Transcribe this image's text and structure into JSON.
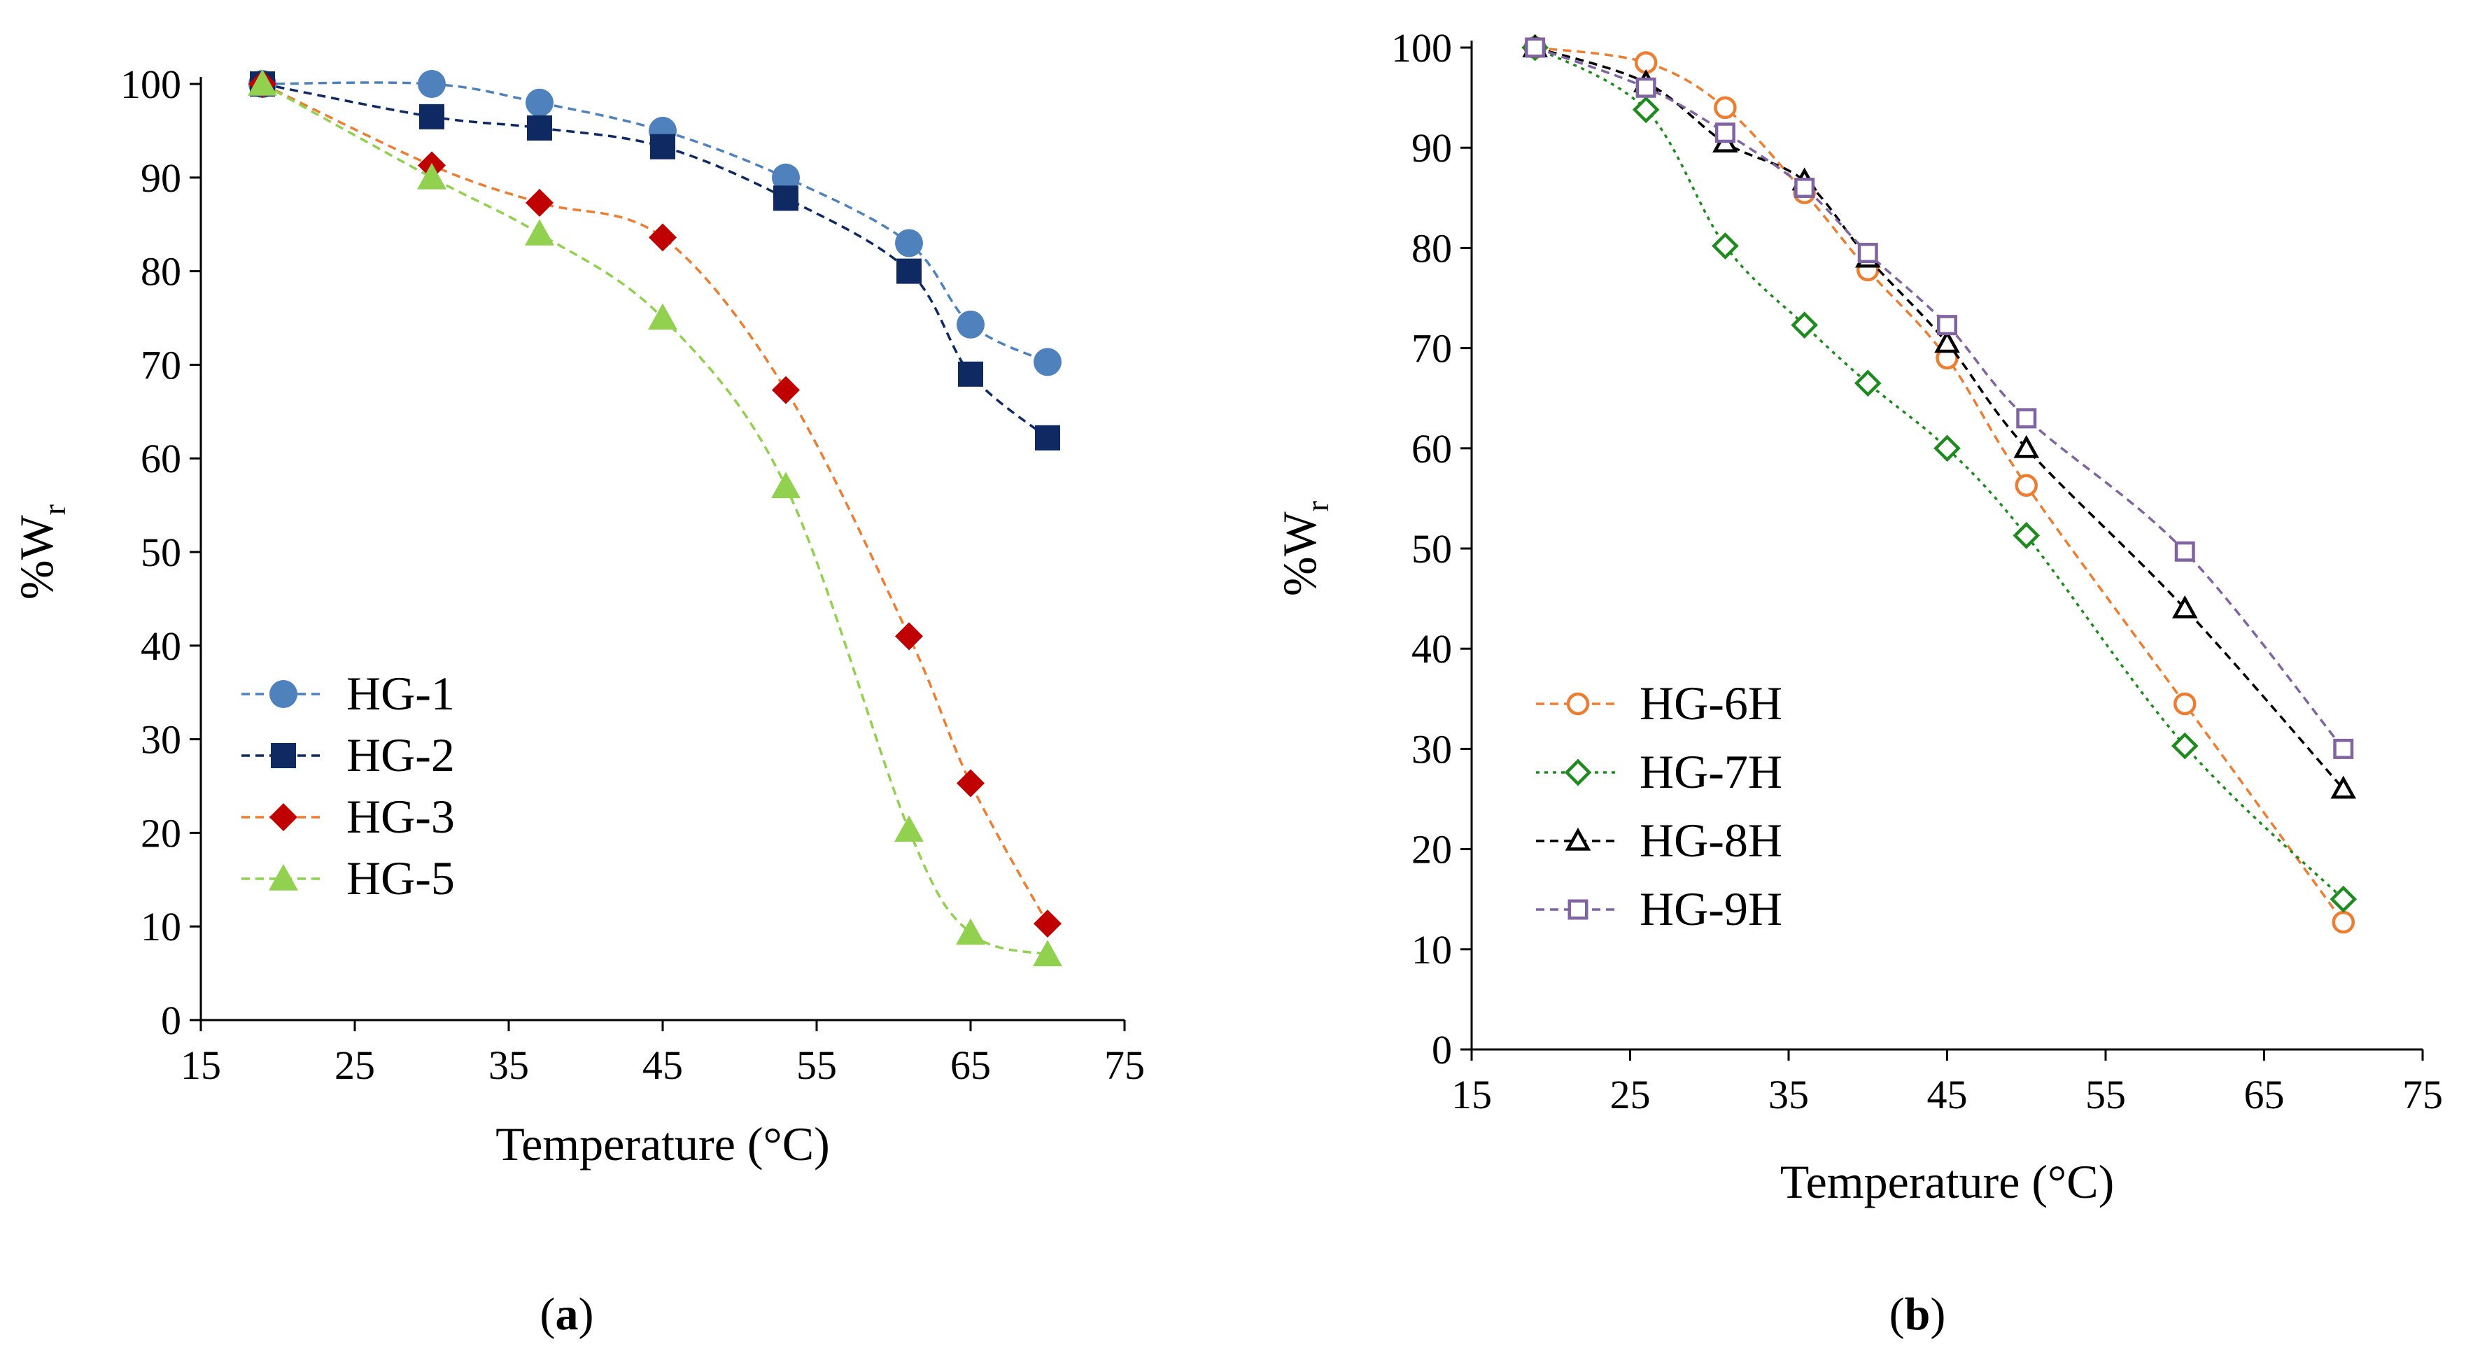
{
  "chart_data": [
    {
      "type": "line",
      "panel_label": "a",
      "panel_caption": {
        "open": "(",
        "label": "a",
        "close": ")"
      },
      "xlabel": "Temperature (°C)",
      "ylabel": {
        "base": "%W",
        "subscript": "r"
      },
      "xlim": [
        15,
        75
      ],
      "ylim": [
        0,
        100
      ],
      "xticks": [
        15,
        25,
        35,
        45,
        55,
        65,
        75
      ],
      "yticks": [
        0,
        10,
        20,
        30,
        40,
        50,
        60,
        70,
        80,
        90,
        100
      ],
      "grid": false,
      "legend_position": "bottom-left",
      "series": [
        {
          "name": "HG-1",
          "color": "#4f81bd",
          "marker": "circle",
          "filled": true,
          "line": "dashed",
          "x": [
            19,
            30,
            37,
            45,
            53,
            61,
            65,
            70
          ],
          "y": [
            100,
            100,
            98,
            95,
            90,
            83,
            74.3,
            70.3
          ]
        },
        {
          "name": "HG-2",
          "color": "#0f2a63",
          "marker": "square",
          "filled": true,
          "line": "dashed",
          "x": [
            19,
            30,
            37,
            45,
            53,
            61,
            65,
            70
          ],
          "y": [
            100,
            96.5,
            95.3,
            93.3,
            87.8,
            80,
            69,
            62.2
          ]
        },
        {
          "name": "HG-3",
          "color": "#c00000",
          "line_color": "#ed7d31",
          "marker": "diamond",
          "filled": true,
          "line": "dashed",
          "x": [
            19,
            30,
            37,
            45,
            53,
            61,
            65,
            70
          ],
          "y": [
            100,
            91.3,
            87.3,
            83.6,
            67.3,
            41,
            25.3,
            10.3
          ]
        },
        {
          "name": "HG-5",
          "color": "#92d050",
          "marker": "triangle",
          "filled": true,
          "line": "dashed",
          "x": [
            19,
            30,
            37,
            45,
            53,
            61,
            65,
            70
          ],
          "y": [
            100,
            90,
            84,
            75,
            57,
            20.3,
            9.3,
            7
          ]
        }
      ]
    },
    {
      "type": "line",
      "panel_label": "b",
      "panel_caption": {
        "open": "(",
        "label": "b",
        "close": ")"
      },
      "xlabel": "Temperature (°C)",
      "ylabel": {
        "base": "%W",
        "subscript": "r"
      },
      "xlim": [
        15,
        75
      ],
      "ylim": [
        0,
        100
      ],
      "xticks": [
        15,
        25,
        35,
        45,
        55,
        65,
        75
      ],
      "yticks": [
        0,
        10,
        20,
        30,
        40,
        50,
        60,
        70,
        80,
        90,
        100
      ],
      "grid": false,
      "legend_position": "bottom-left",
      "series": [
        {
          "name": "HG-6H",
          "color": "#ed7d31",
          "marker": "circle",
          "filled": false,
          "line": "dashed",
          "x": [
            19,
            26,
            31,
            36,
            40,
            45,
            50,
            60,
            70
          ],
          "y": [
            100,
            98.5,
            94,
            85.5,
            77.8,
            69,
            56.3,
            34.5,
            12.7
          ]
        },
        {
          "name": "HG-7H",
          "color": "#1e8b1e",
          "marker": "diamond",
          "filled": false,
          "line": "dotted",
          "x": [
            19,
            26,
            31,
            36,
            40,
            45,
            50,
            60,
            70
          ],
          "y": [
            100,
            93.8,
            80.2,
            72.3,
            66.5,
            60,
            51.3,
            30.3,
            15
          ]
        },
        {
          "name": "HG-8H",
          "color": "#000000",
          "marker": "triangle",
          "filled": false,
          "line": "dashed",
          "x": [
            19,
            26,
            31,
            36,
            40,
            45,
            50,
            60,
            70
          ],
          "y": [
            100,
            96.5,
            90.5,
            86.7,
            79,
            70.5,
            60,
            44,
            26
          ]
        },
        {
          "name": "HG-9H",
          "color": "#8064a2",
          "marker": "square",
          "filled": false,
          "line": "dashed",
          "x": [
            19,
            26,
            31,
            36,
            40,
            45,
            50,
            60,
            70
          ],
          "y": [
            100,
            96,
            91.5,
            86,
            79.5,
            72.3,
            63,
            49.7,
            30
          ]
        }
      ]
    }
  ]
}
